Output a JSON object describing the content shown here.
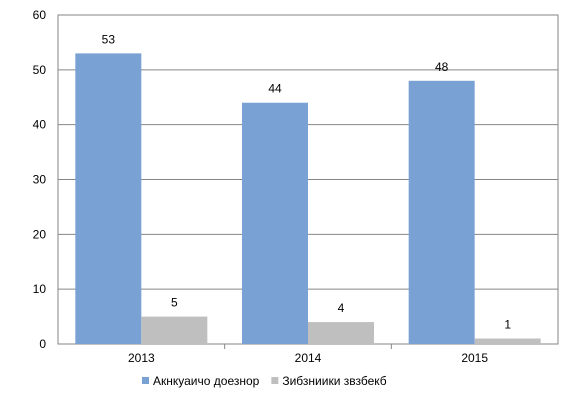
{
  "chart_data": {
    "type": "bar",
    "categories": [
      "2013",
      "2014",
      "2015"
    ],
    "series": [
      {
        "name": "Акнкуаичо доезнор",
        "values": [
          53,
          44,
          48
        ],
        "color": "#7aa1d4"
      },
      {
        "name": "Зибзниики звзбекб",
        "values": [
          5,
          4,
          1
        ],
        "color": "#bfbfbf"
      }
    ],
    "ylim": [
      0,
      60
    ],
    "yticks": [
      0,
      10,
      20,
      30,
      40,
      50,
      60
    ],
    "grid": true,
    "legend_position": "bottom",
    "title": "",
    "xlabel": "",
    "ylabel": ""
  }
}
